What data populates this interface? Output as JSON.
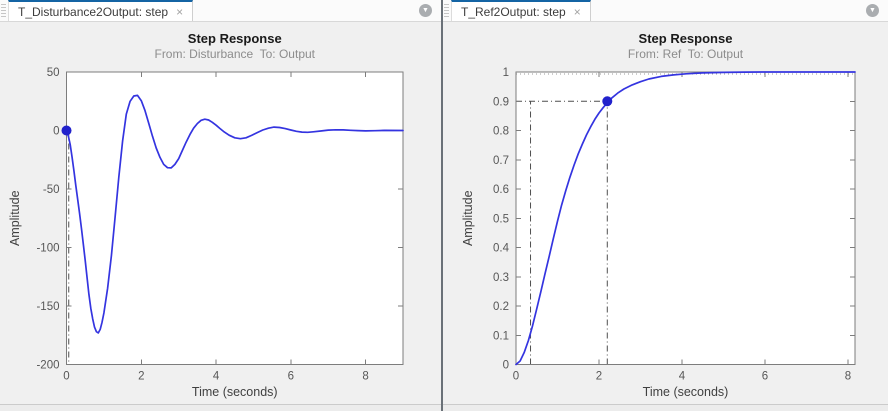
{
  "ui": {
    "close_glyph": "×",
    "dropdown_glyph": "▼",
    "accent_tab_color": "#1464a4",
    "curve_color": "#3434e0",
    "marker_color": "#2222cc",
    "refline_color": "#4f4f4f"
  },
  "panels": [
    {
      "tab": {
        "label": "T_Disturbance2Output: step"
      }
    },
    {
      "tab": {
        "label": "T_Ref2Output: step"
      }
    }
  ],
  "chart_data": [
    {
      "type": "line",
      "title": "Step Response",
      "subtitle": "From: Disturbance  To: Output",
      "xlabel": "Time (seconds)",
      "ylabel": "Amplitude",
      "xlim": [
        0,
        9
      ],
      "ylim": [
        -200,
        50
      ],
      "xticks": [
        0,
        2,
        4,
        6,
        8
      ],
      "yticks": [
        50,
        0,
        -50,
        -100,
        -150,
        -200
      ],
      "grid": false,
      "line_color": "#3434e0",
      "series": [
        {
          "name": "T_Disturbance2Output",
          "points": [
            [
              0,
              0
            ],
            [
              0.05,
              -5
            ],
            [
              0.1,
              -12
            ],
            [
              0.15,
              -23
            ],
            [
              0.2,
              -35
            ],
            [
              0.25,
              -47
            ],
            [
              0.3,
              -59
            ],
            [
              0.35,
              -71
            ],
            [
              0.4,
              -84
            ],
            [
              0.45,
              -97
            ],
            [
              0.5,
              -111
            ],
            [
              0.55,
              -126
            ],
            [
              0.6,
              -140
            ],
            [
              0.65,
              -152
            ],
            [
              0.7,
              -161
            ],
            [
              0.75,
              -168
            ],
            [
              0.8,
              -172
            ],
            [
              0.85,
              -173
            ],
            [
              0.9,
              -170
            ],
            [
              0.95,
              -164
            ],
            [
              1.0,
              -156
            ],
            [
              1.1,
              -135
            ],
            [
              1.2,
              -107
            ],
            [
              1.3,
              -74
            ],
            [
              1.4,
              -40
            ],
            [
              1.5,
              -9
            ],
            [
              1.6,
              14
            ],
            [
              1.7,
              25
            ],
            [
              1.8,
              29.5
            ],
            [
              1.9,
              30
            ],
            [
              2.0,
              25.5
            ],
            [
              2.1,
              17
            ],
            [
              2.2,
              6
            ],
            [
              2.3,
              -5
            ],
            [
              2.4,
              -15
            ],
            [
              2.5,
              -23
            ],
            [
              2.6,
              -29
            ],
            [
              2.7,
              -31.8
            ],
            [
              2.8,
              -32
            ],
            [
              2.9,
              -29
            ],
            [
              3.0,
              -24
            ],
            [
              3.1,
              -17
            ],
            [
              3.2,
              -10
            ],
            [
              3.3,
              -3.5
            ],
            [
              3.4,
              2
            ],
            [
              3.5,
              6
            ],
            [
              3.6,
              8.7
            ],
            [
              3.7,
              9.7
            ],
            [
              3.8,
              9
            ],
            [
              3.9,
              7
            ],
            [
              4.0,
              4.5
            ],
            [
              4.1,
              1.8
            ],
            [
              4.2,
              -0.8
            ],
            [
              4.35,
              -4
            ],
            [
              4.5,
              -6.2
            ],
            [
              4.65,
              -7
            ],
            [
              4.8,
              -6.2
            ],
            [
              4.95,
              -4.2
            ],
            [
              5.1,
              -1.8
            ],
            [
              5.25,
              0.4
            ],
            [
              5.4,
              2
            ],
            [
              5.55,
              2.9
            ],
            [
              5.7,
              2.6
            ],
            [
              5.85,
              1.6
            ],
            [
              6.0,
              0.4
            ],
            [
              6.15,
              -0.7
            ],
            [
              6.3,
              -1.4
            ],
            [
              6.45,
              -1.5
            ],
            [
              6.6,
              -1.1
            ],
            [
              6.8,
              -0.4
            ],
            [
              7.0,
              0.3
            ],
            [
              7.2,
              0.6
            ],
            [
              7.4,
              0.5
            ],
            [
              7.6,
              0.2
            ],
            [
              7.8,
              -0.1
            ],
            [
              8.0,
              -0.3
            ],
            [
              8.25,
              -0.15
            ],
            [
              8.5,
              0.05
            ],
            [
              9.0,
              0
            ]
          ]
        }
      ],
      "markers": [
        {
          "x": 0,
          "y": 0
        }
      ],
      "reference_lines": [
        {
          "orientation": "vertical",
          "x": 0.06,
          "y1": 0,
          "y2": -200
        }
      ]
    },
    {
      "type": "line",
      "title": "Step Response",
      "subtitle": "From: Ref  To: Output",
      "xlabel": "Time (seconds)",
      "ylabel": "Amplitude",
      "xlim": [
        0,
        8.17
      ],
      "ylim": [
        0,
        1
      ],
      "xticks": [
        0,
        2,
        4,
        6,
        8
      ],
      "yticks": [
        1,
        0.9,
        0.8,
        0.7,
        0.6,
        0.5,
        0.4,
        0.3,
        0.2,
        0.1,
        0
      ],
      "grid": false,
      "line_color": "#3434e0",
      "steady_state": 1,
      "series": [
        {
          "name": "T_Ref2Output",
          "points": [
            [
              0,
              0
            ],
            [
              0.1,
              0.012
            ],
            [
              0.2,
              0.042
            ],
            [
              0.3,
              0.082
            ],
            [
              0.4,
              0.133
            ],
            [
              0.5,
              0.19
            ],
            [
              0.6,
              0.25
            ],
            [
              0.7,
              0.31
            ],
            [
              0.8,
              0.37
            ],
            [
              0.9,
              0.43
            ],
            [
              1.0,
              0.49
            ],
            [
              1.1,
              0.545
            ],
            [
              1.2,
              0.595
            ],
            [
              1.3,
              0.64
            ],
            [
              1.4,
              0.682
            ],
            [
              1.5,
              0.72
            ],
            [
              1.6,
              0.754
            ],
            [
              1.7,
              0.785
            ],
            [
              1.8,
              0.813
            ],
            [
              1.9,
              0.838
            ],
            [
              2.0,
              0.86
            ],
            [
              2.1,
              0.878
            ],
            [
              2.2,
              0.895
            ],
            [
              2.3,
              0.91
            ],
            [
              2.45,
              0.928
            ],
            [
              2.6,
              0.942
            ],
            [
              2.8,
              0.956
            ],
            [
              3.0,
              0.967
            ],
            [
              3.2,
              0.976
            ],
            [
              3.5,
              0.985
            ],
            [
              3.8,
              0.99
            ],
            [
              4.1,
              0.994
            ],
            [
              4.5,
              0.997
            ],
            [
              5.0,
              0.9985
            ],
            [
              5.5,
              0.9995
            ],
            [
              6.0,
              1.0
            ],
            [
              6.5,
              1.0
            ],
            [
              7.0,
              1.0
            ],
            [
              7.6,
              1.0
            ],
            [
              8.17,
              1.0
            ]
          ]
        }
      ],
      "markers": [
        {
          "x": 2.2,
          "y": 0.9
        }
      ],
      "reference_lines": [
        {
          "orientation": "horizontal",
          "y": 0.9,
          "x1": 0,
          "x2": 2.2
        },
        {
          "orientation": "vertical",
          "x": 0.35,
          "y1": 0,
          "y2": 0.9
        },
        {
          "orientation": "vertical",
          "x": 2.2,
          "y1": 0,
          "y2": 0.9
        }
      ]
    }
  ]
}
